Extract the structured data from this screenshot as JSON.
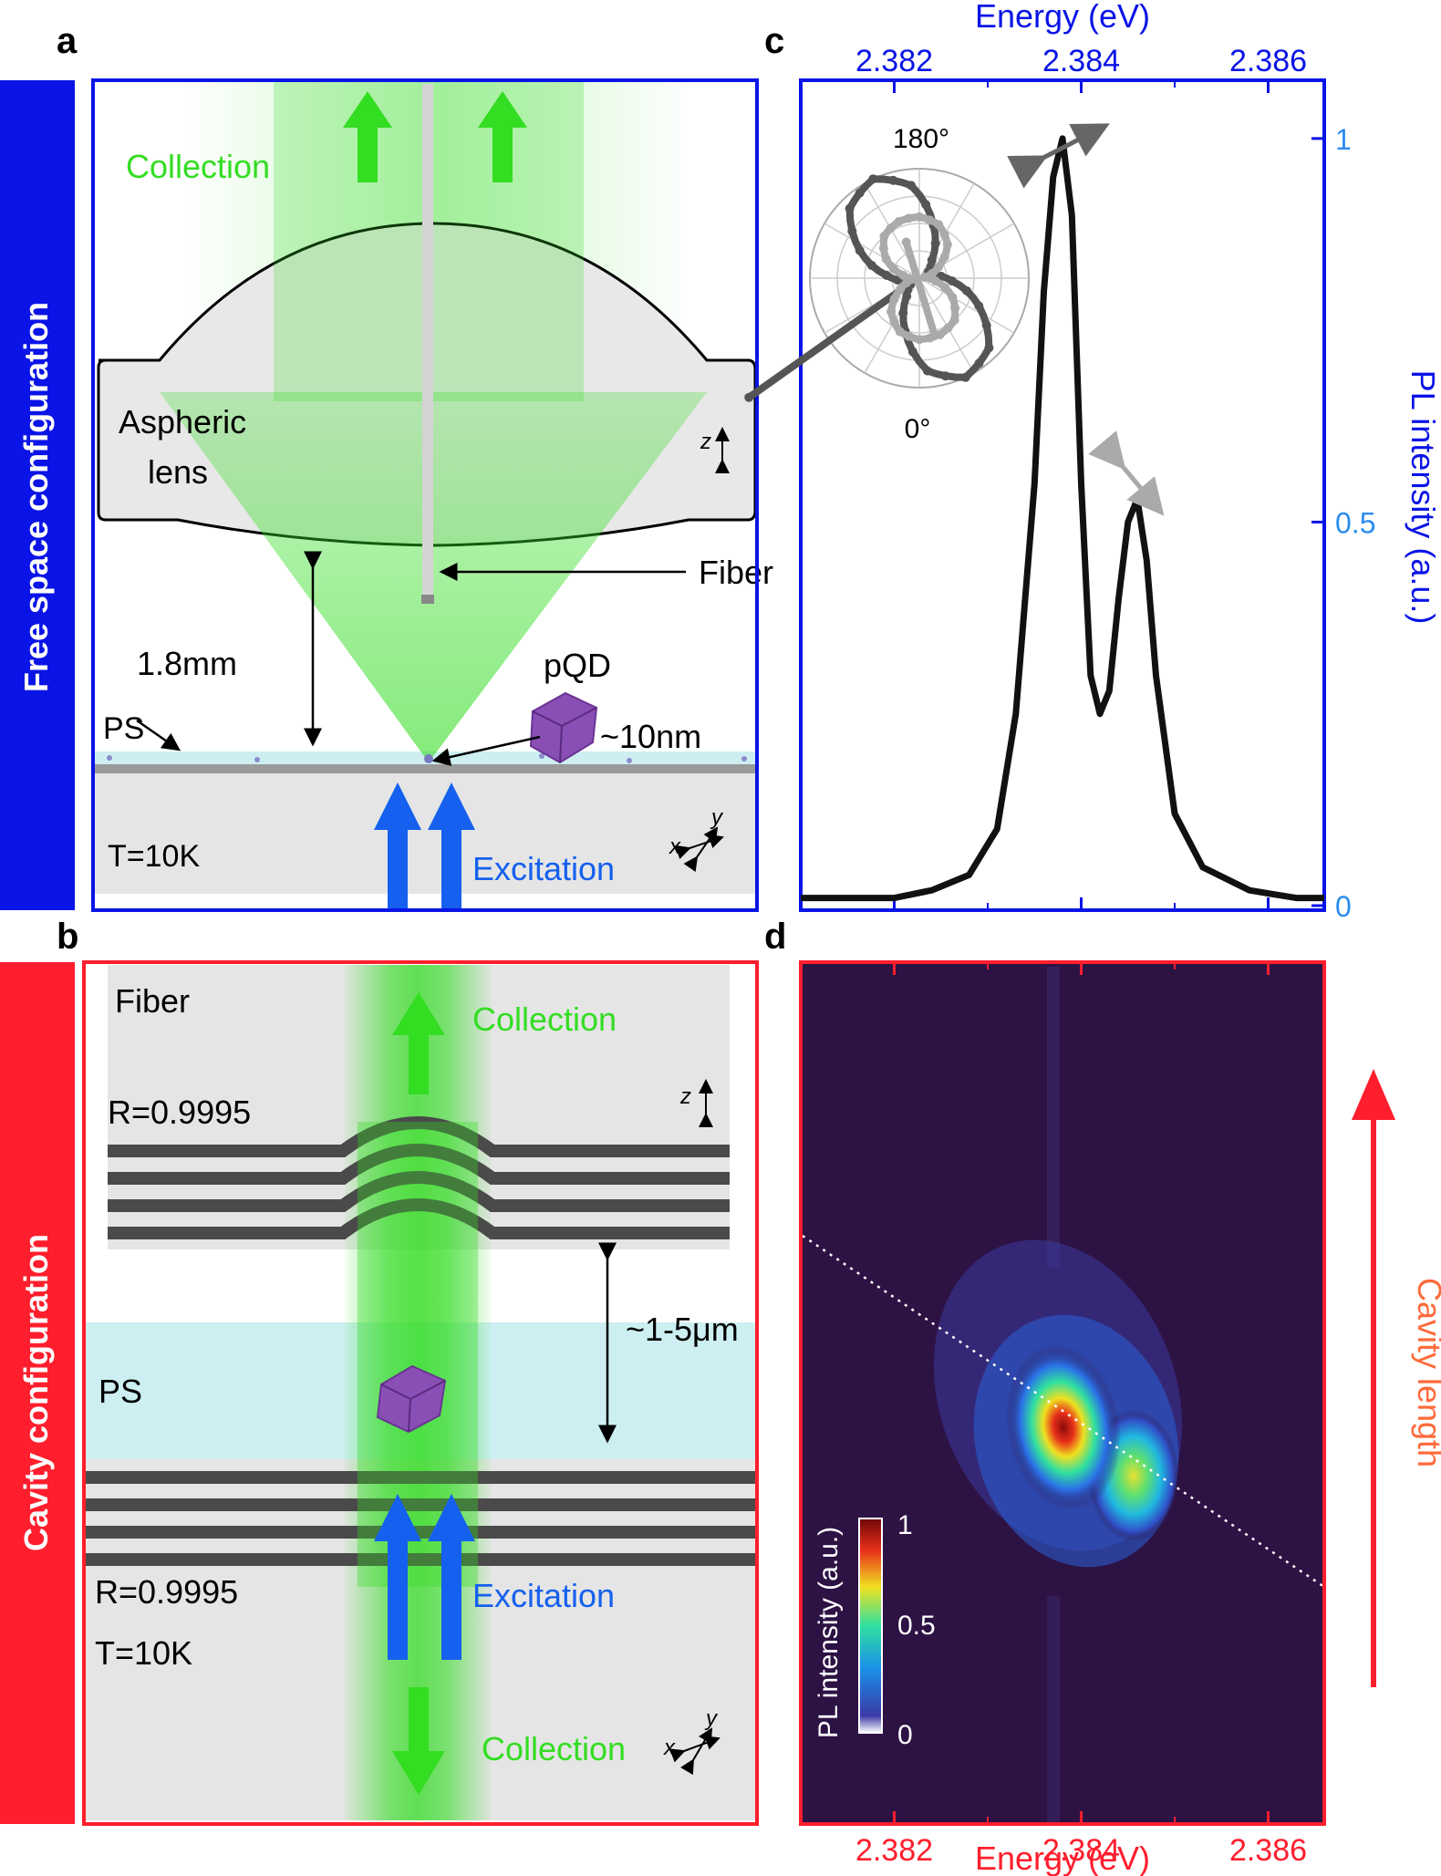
{
  "panel_labels": {
    "a": "a",
    "b": "b",
    "c": "c",
    "d": "d"
  },
  "side_labels": {
    "free": "Free space configuration",
    "cavity": "Cavity configuration"
  },
  "colors": {
    "free_blue": "#0a14e6",
    "cavity_red": "#ff1e2d",
    "green": "#33dd22",
    "excitation_blue": "#1560ee",
    "ps_cyan": "#cdeff2",
    "mirror": "#4a4a4a",
    "spectrum_black": "#111111",
    "tick_light_blue": "#2a8cf0",
    "map_bg": "#2d1244",
    "panel_gray": "#e5e5e5"
  },
  "panel_a": {
    "collection": "Collection",
    "lens": [
      "Aspheric",
      "lens"
    ],
    "z_axis": "z",
    "fiber": "Fiber",
    "distance": "1.8mm",
    "ps": "PS",
    "pqd": "pQD",
    "size": "~10nm",
    "temperature": "T=10K",
    "excitation": "Excitation",
    "axes": {
      "x": "x",
      "y": "y"
    }
  },
  "panel_b": {
    "fiber": "Fiber",
    "collection_top": "Collection",
    "reflectivity_top": "R=0.9995",
    "z_axis": "z",
    "gap": "~1-5μm",
    "ps": "PS",
    "reflectivity_bottom": "R=0.9995",
    "excitation": "Excitation",
    "temperature": "T=10K",
    "collection_bottom": "Collection",
    "axes": {
      "x": "x",
      "y": "y"
    }
  },
  "panel_c_polar": {
    "top": "180°",
    "bottom": "0°"
  },
  "panel_d": {
    "side_label": "Cavity length",
    "colorbar": {
      "label": "PL intensity (a.u.)",
      "ticks": [
        "1",
        "0.5",
        "0"
      ]
    }
  },
  "chart_data": [
    {
      "type": "line",
      "panel": "c",
      "xlabel": "Energy (eV)",
      "ylabel": "PL intensity (a.u.)",
      "xlim": [
        2.381,
        2.3866
      ],
      "ylim": [
        0,
        1.07
      ],
      "xticks": [
        "2.382",
        "2.384",
        "2.386"
      ],
      "yticks": [
        "0",
        "0.5",
        "1"
      ],
      "series": [
        {
          "x": [
            2.381,
            2.3815,
            2.382,
            2.3824,
            2.3828,
            2.3831,
            2.3833,
            2.3835,
            2.3836,
            2.3837,
            2.3838,
            2.3839,
            2.384,
            2.3841,
            2.3842,
            2.3843,
            2.3844,
            2.3845,
            2.3846,
            2.3847,
            2.3848,
            2.385,
            2.3853,
            2.3858,
            2.3863,
            2.3866
          ],
          "y": [
            0.01,
            0.01,
            0.01,
            0.02,
            0.04,
            0.1,
            0.25,
            0.55,
            0.8,
            0.95,
            1.0,
            0.9,
            0.55,
            0.3,
            0.25,
            0.28,
            0.4,
            0.5,
            0.53,
            0.45,
            0.3,
            0.12,
            0.05,
            0.02,
            0.01,
            0.01
          ]
        }
      ],
      "inset_polar": {
        "type": "polar",
        "labels": [
          "180°",
          "0°"
        ],
        "series": [
          {
            "angles_deg": [
              0,
              20,
              40,
              60,
              80,
              100,
              120,
              140,
              160,
              180,
              200,
              220,
              240,
              260,
              280,
              300,
              320,
              340
            ],
            "r": [
              0.1,
              0.2,
              0.5,
              0.85,
              1.0,
              0.9,
              0.6,
              0.3,
              0.1,
              0.1,
              0.2,
              0.5,
              0.85,
              1.0,
              0.9,
              0.6,
              0.3,
              0.1
            ]
          },
          {
            "angles_deg": [
              0,
              20,
              40,
              60,
              80,
              100,
              120,
              140,
              160,
              180,
              200,
              220,
              240,
              260,
              280,
              300,
              320,
              340
            ],
            "r": [
              0.55,
              0.5,
              0.35,
              0.15,
              0.05,
              0.2,
              0.4,
              0.52,
              0.56,
              0.55,
              0.5,
              0.35,
              0.15,
              0.05,
              0.2,
              0.4,
              0.52,
              0.56
            ]
          }
        ]
      }
    },
    {
      "type": "heatmap",
      "panel": "d",
      "xlabel": "Energy (eV)",
      "ylabel": "Cavity length",
      "xlim": [
        2.381,
        2.3866
      ],
      "xticks": [
        "2.382",
        "2.384",
        "2.386"
      ],
      "colorbar_range": [
        0,
        1
      ],
      "peaks": [
        {
          "energy_eV": 2.3838,
          "intensity": 1.0
        },
        {
          "energy_eV": 2.3845,
          "intensity": 0.55
        }
      ],
      "resonance_line": {
        "style": "dotted",
        "color": "white"
      }
    }
  ]
}
